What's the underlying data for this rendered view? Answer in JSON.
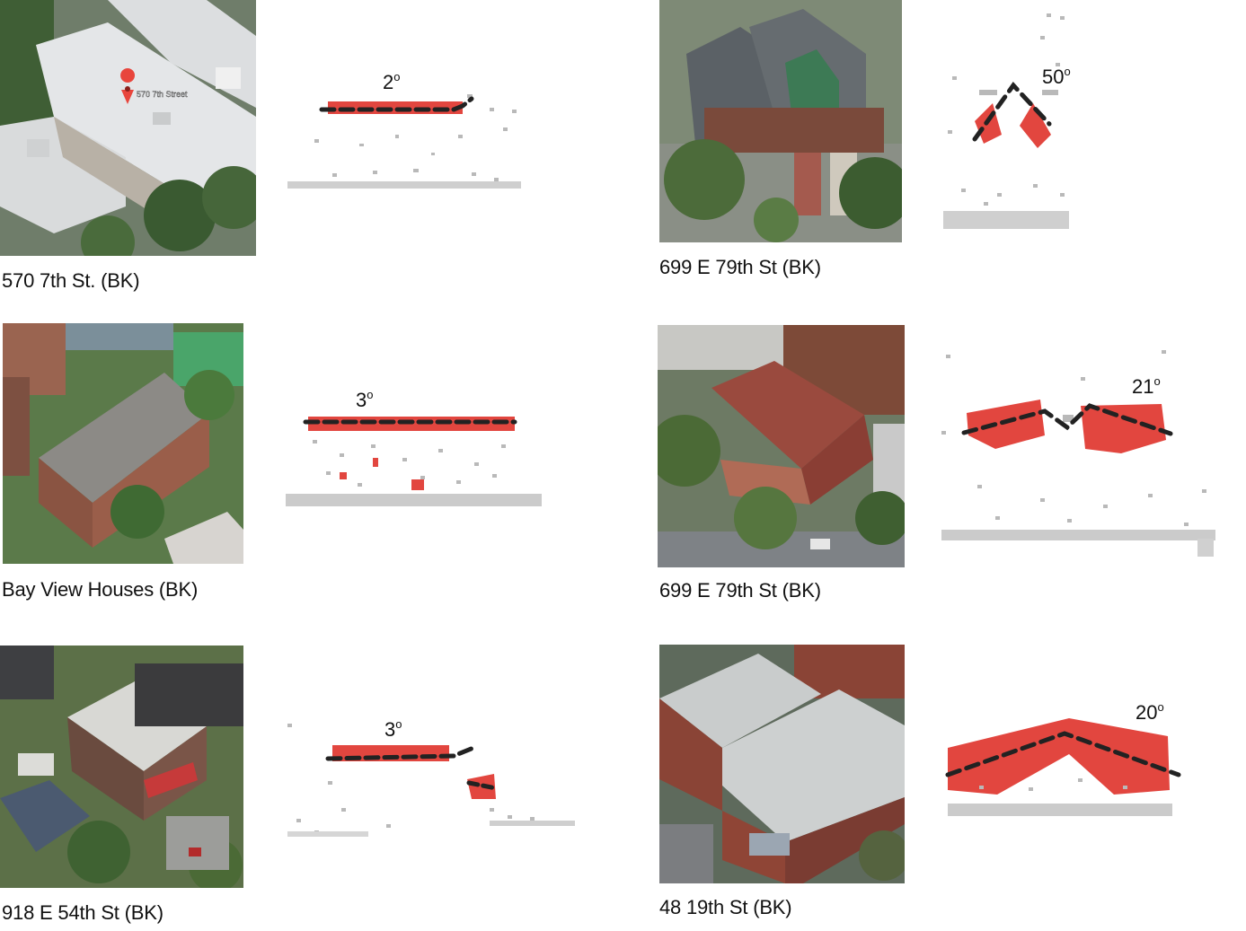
{
  "cases": [
    {
      "caption": "570 7th St. (BK)",
      "angle_value": "2",
      "angle_unit": "o",
      "pin_label": "570 7th Street",
      "roof_shape": "flat",
      "colors": {
        "roof": "#e4e6e8",
        "wall": "#b8b1a6",
        "tree": "#3f5e35"
      }
    },
    {
      "caption": "699 E 79th St (BK)",
      "angle_value": "50",
      "angle_unit": "o",
      "roof_shape": "gable",
      "colors": {
        "roof": "#5b6166",
        "wall": "#7a4a3b",
        "tree": "#4c6b3a"
      }
    },
    {
      "caption": "Bay View Houses (BK)",
      "angle_value": "3",
      "angle_unit": "o",
      "roof_shape": "flat",
      "colors": {
        "roof": "#8c8a86",
        "wall": "#8a5442",
        "tree": "#4f7a3e"
      }
    },
    {
      "caption": "699 E 79th St (BK)",
      "angle_value": "21",
      "angle_unit": "o",
      "roof_shape": "low-gable",
      "colors": {
        "roof": "#9a4a3e",
        "wall": "#7d4a38",
        "tree": "#4b6a36"
      }
    },
    {
      "caption": "918 E 54th St (BK)",
      "angle_value": "3",
      "angle_unit": "o",
      "roof_shape": "flat-split",
      "colors": {
        "roof": "#d8d8d4",
        "wall": "#6a4b3f",
        "tree": "#3f6232"
      }
    },
    {
      "caption": "48 19th St (BK)",
      "angle_value": "20",
      "angle_unit": "o",
      "roof_shape": "low-gable",
      "colors": {
        "roof": "#c9cccc",
        "wall": "#8a4436",
        "tree": "#55633f"
      }
    }
  ],
  "colors": {
    "point_red": "#e2463f",
    "point_grey": "#b9b9b9",
    "dash_line": "#222222"
  }
}
